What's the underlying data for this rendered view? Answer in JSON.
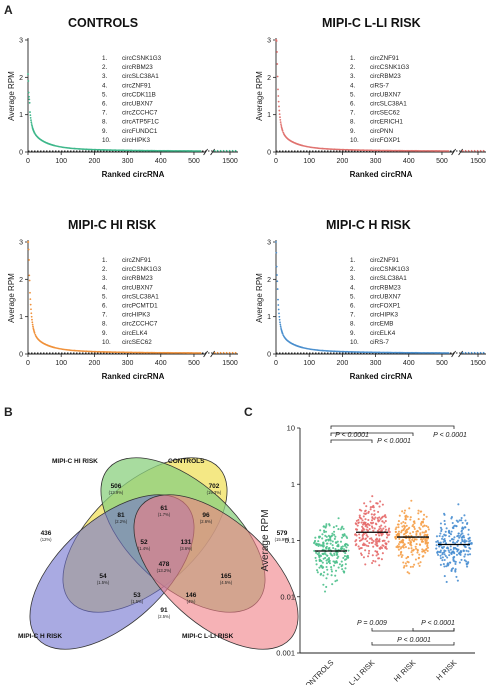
{
  "panel_labels": {
    "a": "A",
    "b": "B",
    "c": "C"
  },
  "chart_data": [
    {
      "type": "line",
      "title": "CONTROLS",
      "xlabel": "Ranked circRNA",
      "ylabel": "Average RPM",
      "ylim": [
        0,
        3
      ],
      "xticks": [
        "0",
        "100",
        "200",
        "300",
        "400",
        "500",
        "1500"
      ],
      "yticks": [
        "0",
        "1",
        "2",
        "3"
      ],
      "color": "#3db78a",
      "peak": 1.25,
      "top10": [
        "circCSNK1G3",
        "circRBM23",
        "circSLC38A1",
        "circZNF91",
        "circCDK11B",
        "circUBXN7",
        "circZCCHC7",
        "circATP5F1C",
        "circFUNDC1",
        "circHIPK3"
      ]
    },
    {
      "type": "line",
      "title": "MIPI-C L-LI RISK",
      "xlabel": "Ranked circRNA",
      "ylabel": "Average RPM",
      "ylim": [
        0,
        3
      ],
      "xticks": [
        "0",
        "100",
        "200",
        "300",
        "400",
        "500",
        "1500"
      ],
      "yticks": [
        "0",
        "1",
        "2",
        "3"
      ],
      "color": "#e0726f",
      "peak": 2.9,
      "top10": [
        "circZNF91",
        "circCSNK1G3",
        "circRBM23",
        "ciRS-7",
        "circUBXN7",
        "circSLC38A1",
        "circSEC62",
        "circERICH1",
        "circPNN",
        "circFOXP1"
      ]
    },
    {
      "type": "line",
      "title": "MIPI-C HI RISK",
      "xlabel": "Ranked circRNA",
      "ylabel": "Average RPM",
      "ylim": [
        0,
        3
      ],
      "xticks": [
        "0",
        "100",
        "200",
        "300",
        "400",
        "500",
        "1500"
      ],
      "yticks": [
        "0",
        "1",
        "2",
        "3"
      ],
      "color": "#f0913a",
      "peak": 2.8,
      "top10": [
        "circZNF91",
        "circCSNK1G3",
        "circRBM23",
        "circUBXN7",
        "circSLC38A1",
        "circPCMTD1",
        "circHIPK3",
        "circZCCHC7",
        "circELK4",
        "circSEC62"
      ]
    },
    {
      "type": "line",
      "title": "MIPI-C H RISK",
      "xlabel": "Ranked circRNA",
      "ylabel": "Average RPM",
      "ylim": [
        0,
        3
      ],
      "xticks": [
        "0",
        "100",
        "200",
        "300",
        "400",
        "500",
        "1500"
      ],
      "yticks": [
        "0",
        "1",
        "2",
        "3"
      ],
      "color": "#4a8fce",
      "peak": 2.3,
      "top10": [
        "circZNF91",
        "circCSNK1G3",
        "circSLC38A1",
        "circRBM23",
        "circUBXN7",
        "circFOXP1",
        "circHIPK3",
        "circEMB",
        "circELK4",
        "ciRS-7"
      ]
    },
    {
      "type": "venn",
      "sets": [
        "MIPI-C HI RISK",
        "CONTROLS",
        "MIPI-C H RISK",
        "MIPI-C L-LI RISK"
      ],
      "regions": [
        {
          "value": "506",
          "pct": "(13.9%)"
        },
        {
          "value": "702",
          "pct": "(19.3%)"
        },
        {
          "value": "436",
          "pct": "(12%)"
        },
        {
          "value": "579",
          "pct": "(15.9%)"
        },
        {
          "value": "81",
          "pct": "(2.2%)"
        },
        {
          "value": "61",
          "pct": "(1.7%)"
        },
        {
          "value": "96",
          "pct": "(2.6%)"
        },
        {
          "value": "52",
          "pct": "(1.4%)"
        },
        {
          "value": "131",
          "pct": "(3.6%)"
        },
        {
          "value": "478",
          "pct": "(13.2%)"
        },
        {
          "value": "54",
          "pct": "(1.5%)"
        },
        {
          "value": "165",
          "pct": "(4.5%)"
        },
        {
          "value": "53",
          "pct": "(1.5%)"
        },
        {
          "value": "146",
          "pct": "(4%)"
        },
        {
          "value": "91",
          "pct": "(2.5%)"
        }
      ]
    },
    {
      "type": "scatter",
      "ylabel": "Average RPM",
      "yscale": "log",
      "ylim": [
        0.001,
        10
      ],
      "yticks": [
        "0.001",
        "0.01",
        "0.1",
        "1",
        "10"
      ],
      "categories": [
        "CONTROLS",
        "L-LI RISK",
        "HI RISK",
        "H RISK"
      ],
      "colors": [
        "#4cc08c",
        "#e66b6b",
        "#f5a04a",
        "#4a8fd1"
      ],
      "medians": [
        0.065,
        0.14,
        0.115,
        0.085
      ],
      "comparisons": [
        {
          "text": "P < 0.0001"
        },
        {
          "text": "P < 0.0001"
        },
        {
          "text": "P < 0.0001"
        },
        {
          "text": "P = 0.009"
        },
        {
          "text": "P < 0.0001"
        },
        {
          "text": "P < 0.0001"
        }
      ]
    }
  ]
}
